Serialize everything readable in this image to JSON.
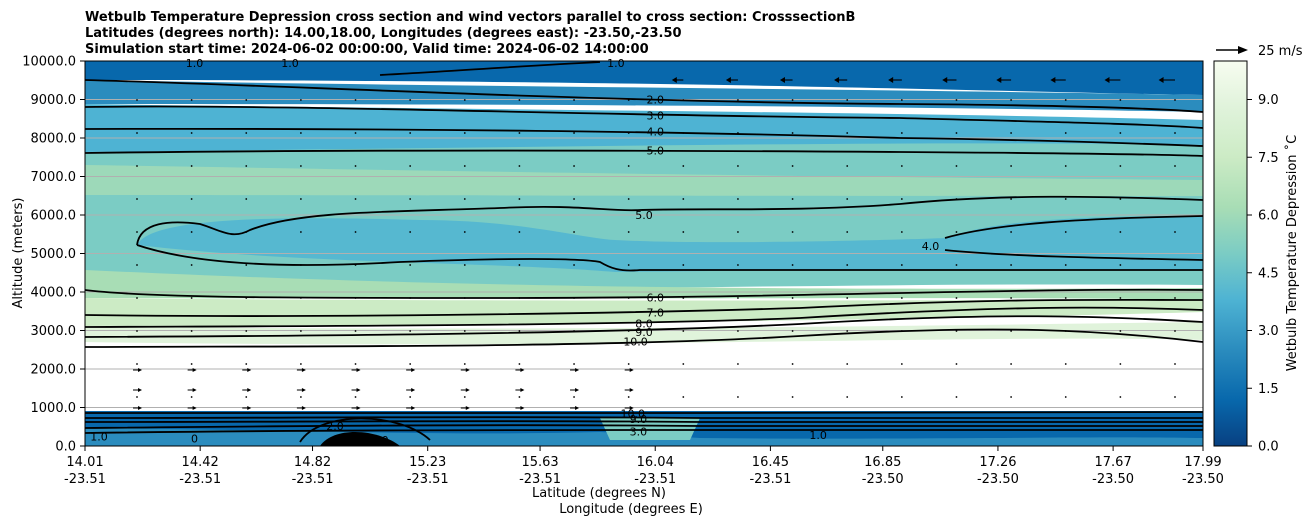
{
  "chart_data": {
    "type": "contour cross section with wind vectors",
    "title_lines": [
      "Wetbulb Temperature Depression cross section and wind vectors parallel to cross section: CrosssectionB",
      "Latitudes (degrees north): 14.00,18.00, Longitudes (degrees east): -23.50,-23.50",
      "Simulation start time: 2024-06-02 00:00:00, Valid time: 2024-06-02 14:00:00"
    ],
    "xlabel_lat": "Latitude (degrees N)",
    "xlabel_lon": "Longitude (degrees E)",
    "ylabel": "Altitude (meters)",
    "x_range": [
      14.01,
      17.99
    ],
    "ylim": [
      0,
      10000
    ],
    "x_ticks": [
      {
        "lat": "14.01",
        "lon": "-23.51"
      },
      {
        "lat": "14.42",
        "lon": "-23.51"
      },
      {
        "lat": "14.82",
        "lon": "-23.51"
      },
      {
        "lat": "15.23",
        "lon": "-23.51"
      },
      {
        "lat": "15.63",
        "lon": "-23.51"
      },
      {
        "lat": "16.04",
        "lon": "-23.51"
      },
      {
        "lat": "16.45",
        "lon": "-23.51"
      },
      {
        "lat": "16.85",
        "lon": "-23.50"
      },
      {
        "lat": "17.26",
        "lon": "-23.50"
      },
      {
        "lat": "17.67",
        "lon": "-23.50"
      },
      {
        "lat": "17.99",
        "lon": "-23.50"
      }
    ],
    "y_ticks": [
      "0.0",
      "1000.0",
      "2000.0",
      "3000.0",
      "4000.0",
      "5000.0",
      "6000.0",
      "7000.0",
      "8000.0",
      "9000.0",
      "10000.0"
    ],
    "grid": "horizontal",
    "colorbar": {
      "label": "Wetbulb Temperature Depression ˚C",
      "range": [
        0,
        10
      ],
      "ticks": [
        "0.0",
        "1.5",
        "3.0",
        "4.5",
        "6.0",
        "7.5",
        "9.0"
      ],
      "tick_values": [
        0,
        1.5,
        3.0,
        4.5,
        6.0,
        7.5,
        9.0
      ],
      "levels": 20,
      "colormap": "GnBu"
    },
    "contour_labels": [
      {
        "text": "2.0",
        "lat": 16.04,
        "alt": 9000
      },
      {
        "text": "3.0",
        "lat": 16.04,
        "alt": 8580
      },
      {
        "text": "4.0",
        "lat": 16.04,
        "alt": 8170
      },
      {
        "text": "5.0",
        "lat": 16.04,
        "alt": 7680
      },
      {
        "text": "5.0",
        "lat": 16.0,
        "alt": 6000
      },
      {
        "text": "4.0",
        "lat": 17.02,
        "alt": 5200
      },
      {
        "text": "6.0",
        "lat": 16.04,
        "alt": 3860
      },
      {
        "text": "7.0",
        "lat": 16.04,
        "alt": 3470
      },
      {
        "text": "8.0",
        "lat": 16.0,
        "alt": 3180
      },
      {
        "text": "9.0",
        "lat": 16.0,
        "alt": 2960
      },
      {
        "text": "10.0",
        "lat": 15.97,
        "alt": 2710
      },
      {
        "text": "1.0",
        "lat": 14.4,
        "alt": 9950
      },
      {
        "text": "1.0",
        "lat": 14.74,
        "alt": 9950
      },
      {
        "text": "1.0",
        "lat": 15.9,
        "alt": 9950
      },
      {
        "text": "10.0",
        "lat": 15.96,
        "alt": 850
      },
      {
        "text": "9.0",
        "lat": 15.98,
        "alt": 700
      },
      {
        "text": "3.0",
        "lat": 15.98,
        "alt": 380
      },
      {
        "text": "2.0",
        "lat": 14.9,
        "alt": 520
      },
      {
        "text": "6.0",
        "lat": 15.06,
        "alt": 150
      },
      {
        "text": "1.0",
        "lat": 14.06,
        "alt": 250
      },
      {
        "text": "0",
        "lat": 14.4,
        "alt": 200
      },
      {
        "text": "1.0",
        "lat": 16.62,
        "alt": 280
      }
    ],
    "wind_vector_key": {
      "label": "25 m/s",
      "speed": 25
    }
  }
}
